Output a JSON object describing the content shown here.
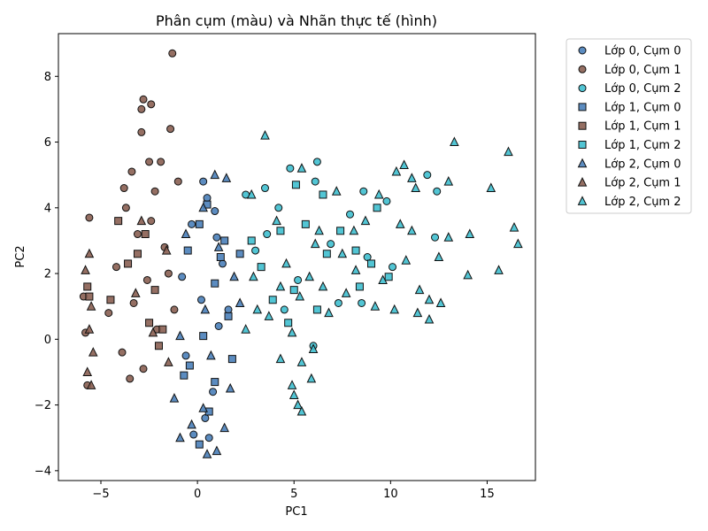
{
  "chart_data": {
    "type": "scatter",
    "title": "Phân cụm (màu) và Nhãn thực tế (hình)",
    "xlabel": "PC1",
    "ylabel": "PC2",
    "xlim": [
      -7.2,
      17.5
    ],
    "ylim": [
      -4.3,
      9.3
    ],
    "x_ticks": [
      -5,
      0,
      5,
      10,
      15
    ],
    "y_ticks": [
      -4,
      -2,
      0,
      2,
      4,
      6,
      8
    ],
    "grid": false,
    "legend_position": "outside-top-right",
    "cluster_colors": {
      "cum0": "#4a7fb9",
      "cum1": "#8a5f52",
      "cum2": "#3fbfcf"
    },
    "marker_shapes": {
      "lop0": "circle",
      "lop1": "square",
      "lop2": "triangle"
    },
    "series": [
      {
        "name": "Lớp 0, Cụm 0",
        "cluster": "cum0",
        "marker": "circle",
        "color": "#4a7fb9",
        "points": [
          [
            0.3,
            4.8
          ],
          [
            0.5,
            4.3
          ],
          [
            0.9,
            3.9
          ],
          [
            -0.3,
            3.5
          ],
          [
            0.2,
            1.2
          ],
          [
            1.1,
            0.4
          ],
          [
            -0.6,
            -0.5
          ],
          [
            0.8,
            -1.6
          ],
          [
            0.4,
            -2.4
          ],
          [
            -0.2,
            -2.9
          ],
          [
            1.3,
            2.3
          ],
          [
            1.6,
            0.9
          ],
          [
            -0.8,
            1.9
          ],
          [
            0.6,
            -3.0
          ],
          [
            1.0,
            3.1
          ]
        ]
      },
      {
        "name": "Lớp 0, Cụm 1",
        "cluster": "cum1",
        "marker": "circle",
        "color": "#8a5f52",
        "points": [
          [
            -1.3,
            8.7
          ],
          [
            -2.8,
            7.3
          ],
          [
            -2.9,
            7.0
          ],
          [
            -2.4,
            7.15
          ],
          [
            -2.9,
            6.3
          ],
          [
            -1.4,
            6.4
          ],
          [
            -2.5,
            5.4
          ],
          [
            -1.9,
            5.4
          ],
          [
            -3.4,
            5.1
          ],
          [
            -1.0,
            4.8
          ],
          [
            -3.8,
            4.6
          ],
          [
            -2.2,
            4.5
          ],
          [
            -5.6,
            3.7
          ],
          [
            -3.1,
            3.2
          ],
          [
            -1.7,
            2.8
          ],
          [
            -4.2,
            2.2
          ],
          [
            -2.6,
            1.8
          ],
          [
            -3.3,
            1.1
          ],
          [
            -4.6,
            0.8
          ],
          [
            -2.1,
            0.3
          ],
          [
            -3.9,
            -0.4
          ],
          [
            -2.8,
            -0.9
          ],
          [
            -3.5,
            -1.2
          ],
          [
            -5.9,
            1.3
          ],
          [
            -5.8,
            0.2
          ],
          [
            -5.7,
            -1.4
          ],
          [
            -3.7,
            4.0
          ],
          [
            -2.4,
            3.6
          ],
          [
            -1.5,
            2.0
          ],
          [
            -1.2,
            0.9
          ]
        ]
      },
      {
        "name": "Lớp 0, Cụm 2",
        "cluster": "cum2",
        "marker": "circle",
        "color": "#3fbfcf",
        "points": [
          [
            6.2,
            5.4
          ],
          [
            4.8,
            5.2
          ],
          [
            6.1,
            4.8
          ],
          [
            8.6,
            4.5
          ],
          [
            9.8,
            4.2
          ],
          [
            11.9,
            5.0
          ],
          [
            12.4,
            4.5
          ],
          [
            12.3,
            3.1
          ],
          [
            7.9,
            3.8
          ],
          [
            3.5,
            4.6
          ],
          [
            2.5,
            4.4
          ],
          [
            4.2,
            4.0
          ],
          [
            6.9,
            2.9
          ],
          [
            8.8,
            2.5
          ],
          [
            10.1,
            2.2
          ],
          [
            5.2,
            1.8
          ],
          [
            7.3,
            1.1
          ],
          [
            8.5,
            1.1
          ],
          [
            3.0,
            2.7
          ],
          [
            4.5,
            0.9
          ],
          [
            6.0,
            -0.2
          ],
          [
            3.6,
            3.2
          ]
        ]
      },
      {
        "name": "Lớp 1, Cụm 0",
        "cluster": "cum0",
        "marker": "square",
        "color": "#4a7fb9",
        "points": [
          [
            0.5,
            4.1
          ],
          [
            0.1,
            3.5
          ],
          [
            -0.5,
            2.7
          ],
          [
            1.4,
            3.0
          ],
          [
            0.9,
            1.7
          ],
          [
            1.6,
            0.7
          ],
          [
            0.3,
            0.1
          ],
          [
            -0.4,
            -0.8
          ],
          [
            0.9,
            -1.3
          ],
          [
            1.8,
            -0.6
          ],
          [
            0.6,
            -2.2
          ],
          [
            0.1,
            -3.2
          ],
          [
            -0.7,
            -1.1
          ],
          [
            1.2,
            2.5
          ],
          [
            2.2,
            2.6
          ]
        ]
      },
      {
        "name": "Lớp 1, Cụm 1",
        "cluster": "cum1",
        "marker": "square",
        "color": "#8a5f52",
        "points": [
          [
            -4.1,
            3.6
          ],
          [
            -2.7,
            3.2
          ],
          [
            -3.6,
            2.3
          ],
          [
            -2.2,
            1.5
          ],
          [
            -1.8,
            0.3
          ],
          [
            -4.5,
            1.2
          ],
          [
            -2.5,
            0.5
          ],
          [
            -5.7,
            1.6
          ],
          [
            -5.6,
            1.3
          ],
          [
            -2.0,
            -0.2
          ],
          [
            -3.1,
            2.6
          ]
        ]
      },
      {
        "name": "Lớp 1, Cụm 2",
        "cluster": "cum2",
        "marker": "square",
        "color": "#3fbfcf",
        "points": [
          [
            5.1,
            4.7
          ],
          [
            6.5,
            4.4
          ],
          [
            9.3,
            4.0
          ],
          [
            4.3,
            3.3
          ],
          [
            5.6,
            3.5
          ],
          [
            7.4,
            3.3
          ],
          [
            8.2,
            2.7
          ],
          [
            9.0,
            2.3
          ],
          [
            6.7,
            2.6
          ],
          [
            5.0,
            1.5
          ],
          [
            2.8,
            3.0
          ],
          [
            3.3,
            2.2
          ],
          [
            9.9,
            1.9
          ],
          [
            8.4,
            1.6
          ],
          [
            4.7,
            0.5
          ],
          [
            6.2,
            0.9
          ],
          [
            3.9,
            1.2
          ]
        ]
      },
      {
        "name": "Lớp 2, Cụm 0",
        "cluster": "cum0",
        "marker": "triangle",
        "color": "#4a7fb9",
        "points": [
          [
            0.9,
            5.0
          ],
          [
            1.5,
            4.9
          ],
          [
            0.3,
            4.0
          ],
          [
            -0.6,
            3.2
          ],
          [
            1.1,
            2.8
          ],
          [
            1.9,
            1.9
          ],
          [
            0.4,
            0.9
          ],
          [
            -0.9,
            0.1
          ],
          [
            0.7,
            -0.5
          ],
          [
            1.7,
            -1.5
          ],
          [
            0.3,
            -2.1
          ],
          [
            -0.3,
            -2.6
          ],
          [
            1.0,
            -3.4
          ],
          [
            0.5,
            -3.5
          ],
          [
            -0.9,
            -3.0
          ],
          [
            -1.2,
            -1.8
          ],
          [
            2.2,
            1.1
          ],
          [
            1.4,
            -2.7
          ]
        ]
      },
      {
        "name": "Lớp 2, Cụm 1",
        "cluster": "cum1",
        "marker": "triangle",
        "color": "#8a5f52",
        "points": [
          [
            -5.8,
            2.1
          ],
          [
            -5.5,
            1.0
          ],
          [
            -5.6,
            0.3
          ],
          [
            -5.4,
            -0.4
          ],
          [
            -5.7,
            -1.0
          ],
          [
            -5.5,
            -1.4
          ],
          [
            -5.6,
            2.6
          ],
          [
            -2.9,
            3.6
          ],
          [
            -1.6,
            2.7
          ],
          [
            -3.2,
            1.4
          ],
          [
            -2.3,
            0.2
          ],
          [
            -1.5,
            -0.7
          ]
        ]
      },
      {
        "name": "Lớp 2, Cụm 2",
        "cluster": "cum2",
        "marker": "triangle",
        "color": "#3fbfcf",
        "points": [
          [
            3.5,
            6.2
          ],
          [
            13.3,
            6.0
          ],
          [
            16.1,
            5.7
          ],
          [
            5.4,
            5.2
          ],
          [
            10.3,
            5.1
          ],
          [
            10.7,
            5.3
          ],
          [
            11.1,
            4.9
          ],
          [
            11.3,
            4.6
          ],
          [
            13.0,
            4.8
          ],
          [
            15.2,
            4.6
          ],
          [
            9.4,
            4.4
          ],
          [
            7.2,
            4.5
          ],
          [
            2.8,
            4.4
          ],
          [
            4.1,
            3.6
          ],
          [
            6.3,
            3.3
          ],
          [
            8.7,
            3.6
          ],
          [
            10.5,
            3.5
          ],
          [
            11.1,
            3.3
          ],
          [
            13.0,
            3.1
          ],
          [
            14.1,
            3.2
          ],
          [
            16.4,
            3.4
          ],
          [
            16.6,
            2.9
          ],
          [
            12.5,
            2.5
          ],
          [
            15.6,
            2.1
          ],
          [
            14.0,
            1.95
          ],
          [
            6.1,
            2.9
          ],
          [
            7.5,
            2.6
          ],
          [
            8.2,
            2.1
          ],
          [
            9.6,
            1.8
          ],
          [
            10.8,
            2.4
          ],
          [
            4.6,
            2.3
          ],
          [
            5.8,
            1.9
          ],
          [
            6.5,
            1.6
          ],
          [
            7.7,
            1.4
          ],
          [
            9.2,
            1.0
          ],
          [
            11.5,
            1.5
          ],
          [
            12.0,
            1.2
          ],
          [
            12.6,
            1.1
          ],
          [
            11.4,
            0.8
          ],
          [
            12.0,
            0.6
          ],
          [
            10.2,
            0.9
          ],
          [
            4.3,
            1.6
          ],
          [
            5.3,
            1.3
          ],
          [
            6.8,
            0.8
          ],
          [
            3.7,
            0.7
          ],
          [
            2.5,
            0.3
          ],
          [
            4.9,
            0.2
          ],
          [
            6.0,
            -0.3
          ],
          [
            4.3,
            -0.6
          ],
          [
            5.4,
            -0.7
          ],
          [
            5.9,
            -1.2
          ],
          [
            4.9,
            -1.4
          ],
          [
            5.0,
            -1.7
          ],
          [
            5.2,
            -2.0
          ],
          [
            5.4,
            -2.2
          ],
          [
            3.1,
            0.9
          ],
          [
            2.9,
            1.9
          ],
          [
            8.1,
            3.3
          ]
        ]
      }
    ]
  }
}
